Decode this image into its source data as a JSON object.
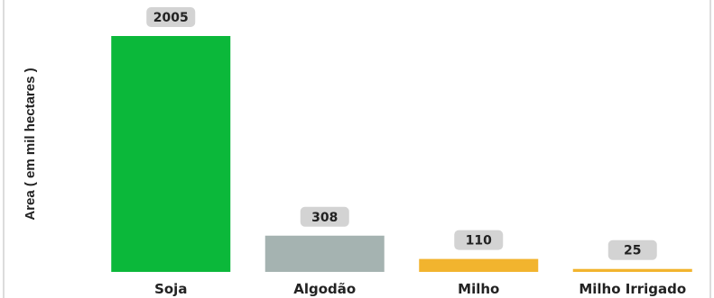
{
  "chart_data": {
    "type": "bar",
    "title": "",
    "xlabel": "",
    "ylabel": "Area ( em mil hectares )",
    "categories": [
      "Soja",
      "Algodão",
      "Milho",
      "Milho Irrigado"
    ],
    "values": [
      2005,
      308,
      110,
      25
    ],
    "data_labels": [
      "2005",
      "308",
      "110",
      "25"
    ],
    "colors": [
      "#0bb83a",
      "#a5b3b1",
      "#f2b42e",
      "#f2b42e"
    ],
    "ylim": [
      0,
      2005
    ],
    "grid": false,
    "legend": "none"
  }
}
